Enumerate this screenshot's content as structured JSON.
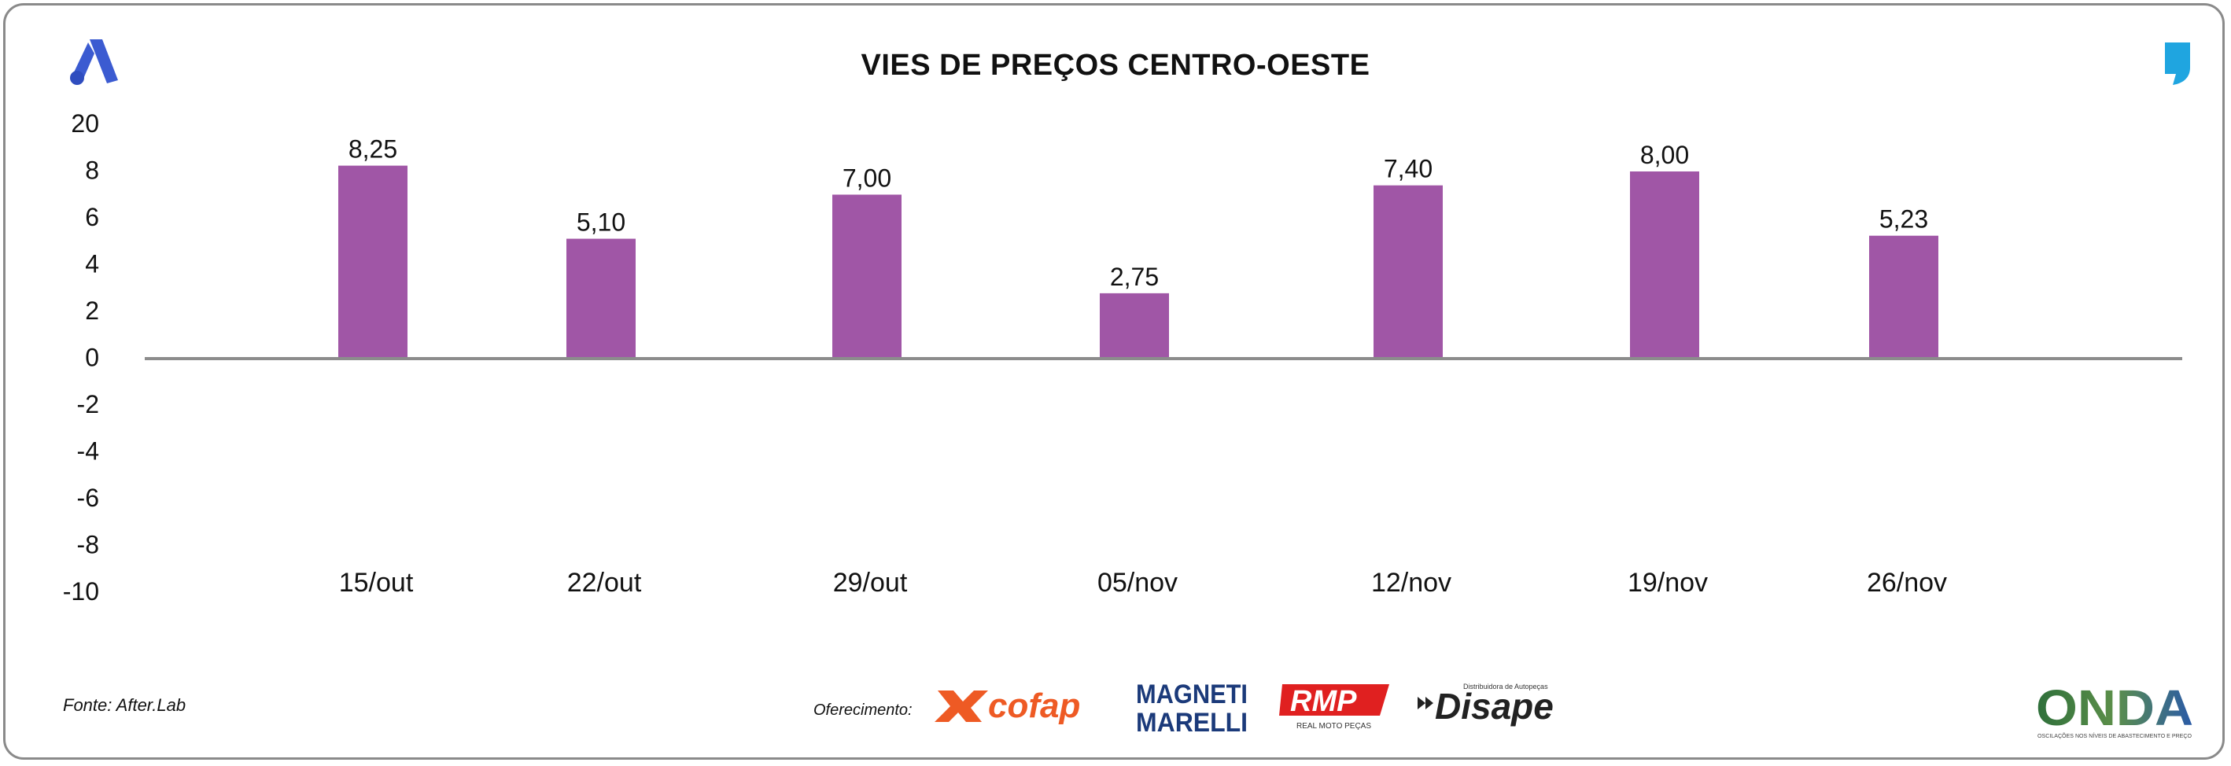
{
  "title": "VIES DE PREÇOS CENTRO-OESTE",
  "source": "Fonte: After.Lab",
  "sponsor_label": "Oferecimento:",
  "sponsors": {
    "cofap": "cofap",
    "magneti_line1": "MAGNETI",
    "magneti_line2": "MARELLI",
    "rmp": "RMP",
    "rmp_sub": "REAL MOTO PEÇAS",
    "disape": "Disape",
    "disape_sub": "Distribuidora de Autopeças",
    "onda": "ONDA",
    "onda_sub": "OSCILAÇÕES NOS NÍVEIS DE ABASTECIMENTO E PREÇO"
  },
  "colors": {
    "bar": "#a056a6",
    "axis": "#8c8c8c",
    "accent_blue": "#3b5bd1",
    "accent_cyan": "#1fa5e0"
  },
  "chart_data": {
    "type": "bar",
    "title": "VIES DE PREÇOS CENTRO-OESTE",
    "categories": [
      "15/out",
      "22/out",
      "29/out",
      "05/nov",
      "12/nov",
      "19/nov",
      "26/nov"
    ],
    "values": [
      8.25,
      5.1,
      7.0,
      2.75,
      7.4,
      8.0,
      5.23
    ],
    "value_labels": [
      "8,25",
      "5,10",
      "7,00",
      "2,75",
      "7,40",
      "8,00",
      "5,23"
    ],
    "y_ticks": [
      "20",
      "8",
      "6",
      "4",
      "2",
      "0",
      "-2",
      "-4",
      "-6",
      "-8",
      "-10"
    ],
    "xlabel": "",
    "ylabel": "",
    "grid": false
  }
}
